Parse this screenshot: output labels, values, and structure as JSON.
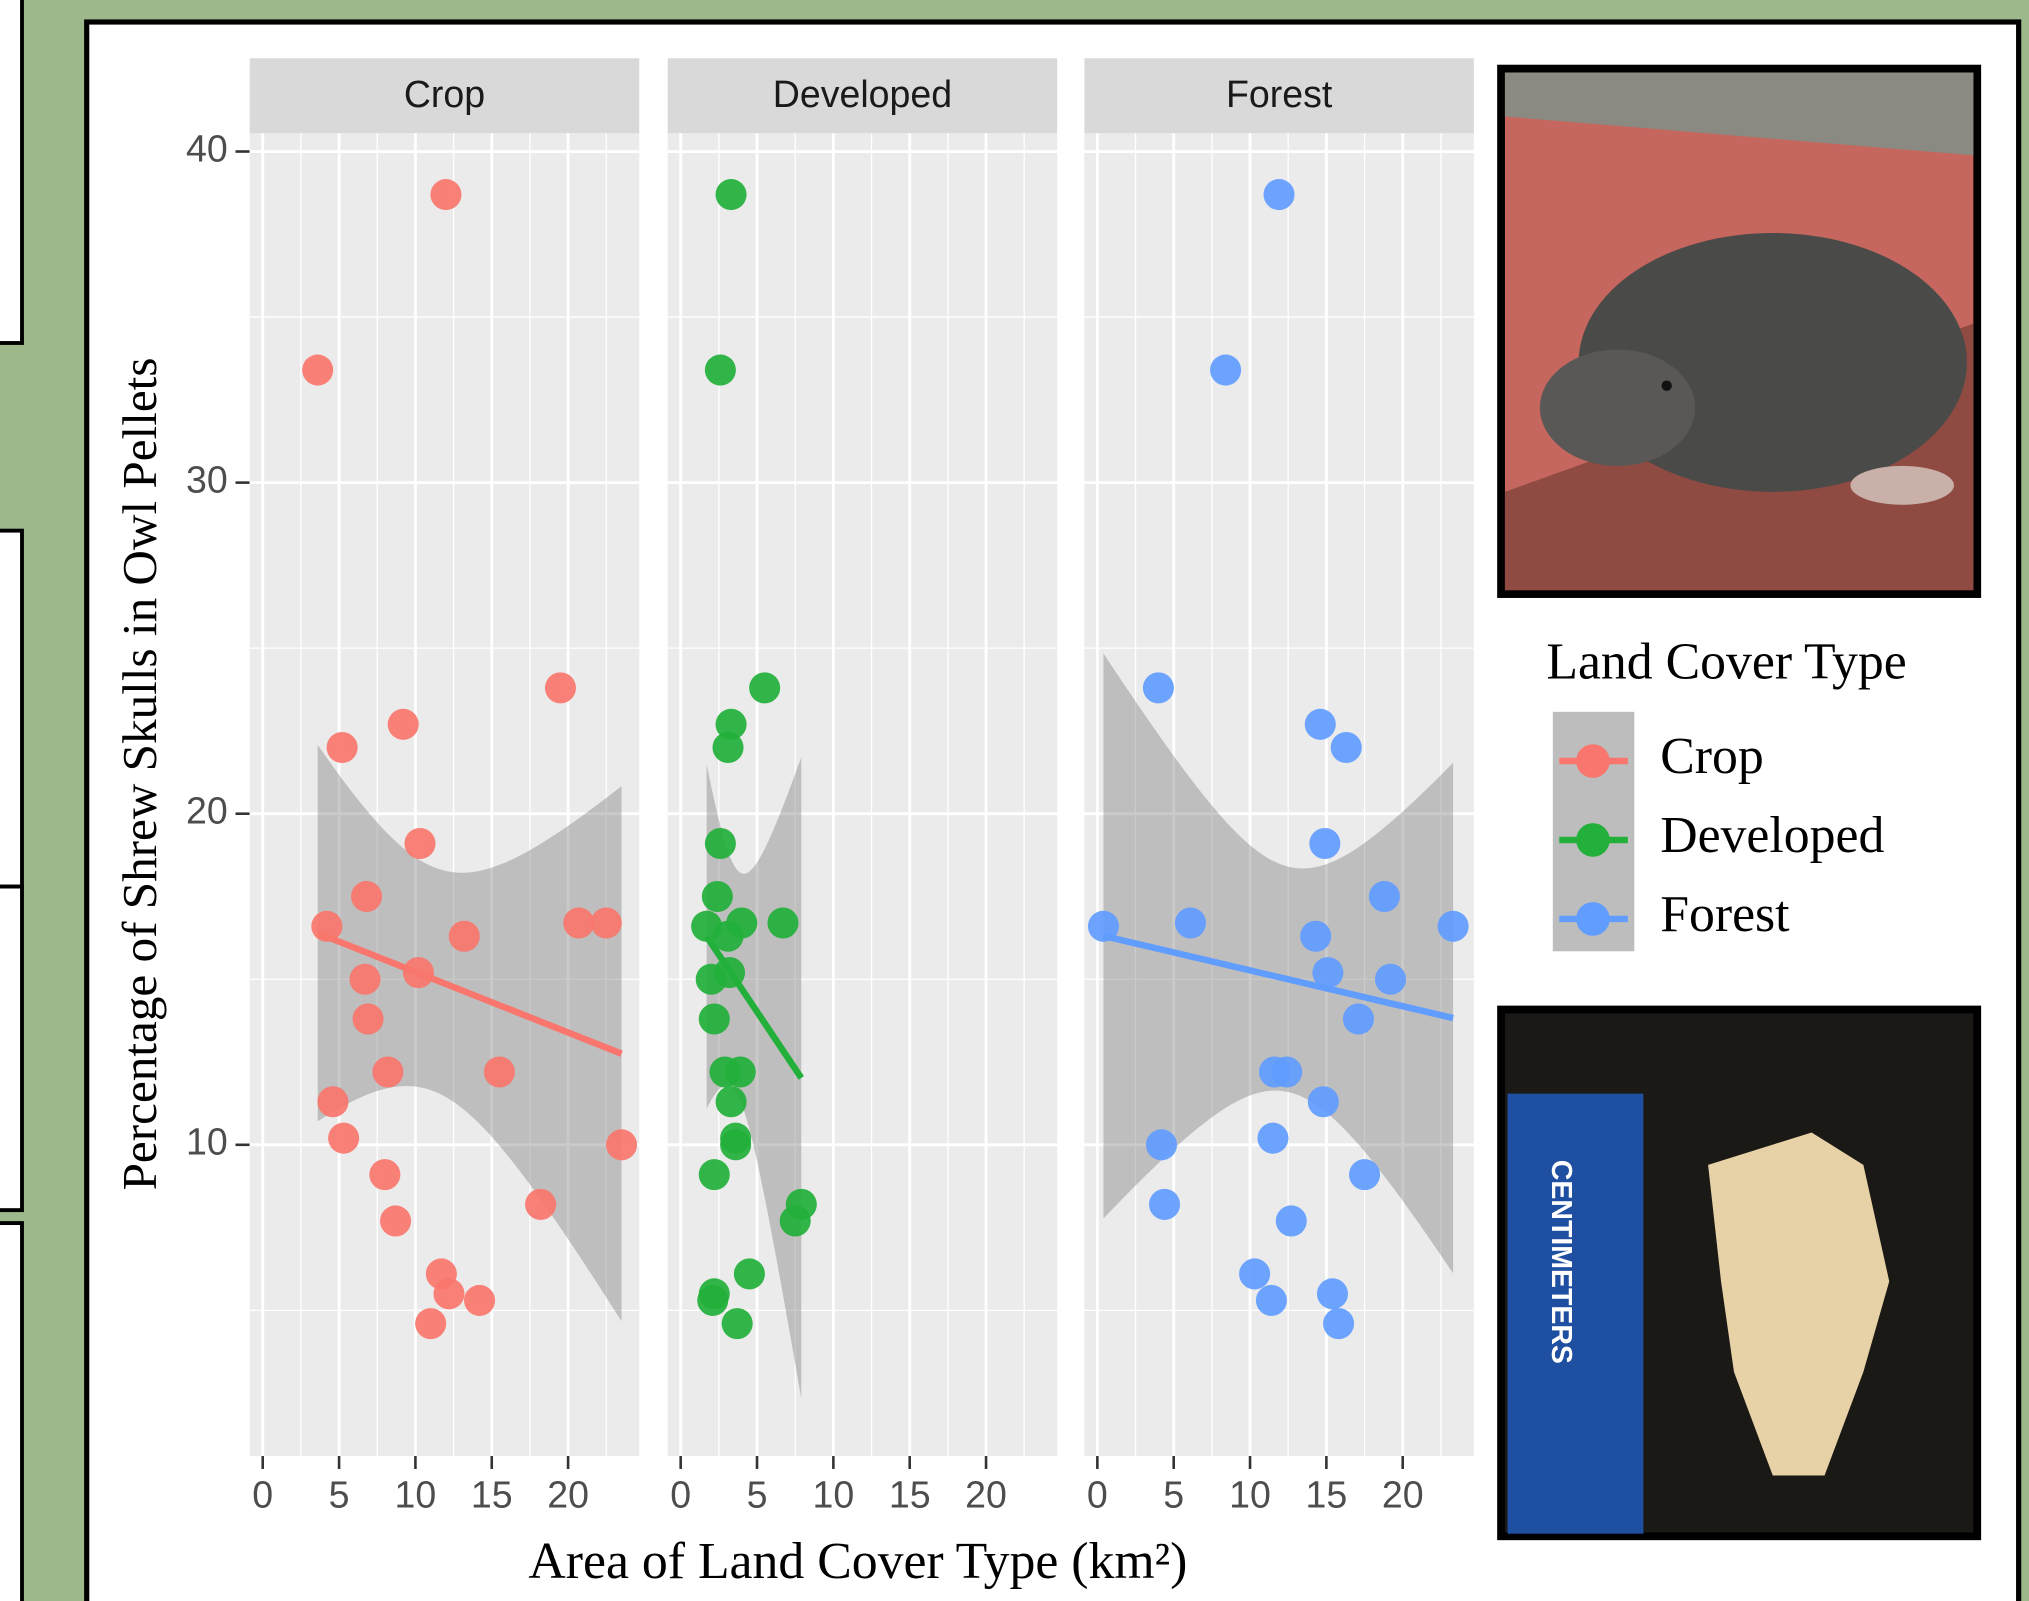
{
  "chart_data": {
    "type": "scatter",
    "facet": true,
    "xlabel": "Area of Land Cover Type (km²)",
    "ylabel": "Percentage of Shrew Skulls in Owl Pellets",
    "legend_title": "Land Cover Type",
    "xlim": [
      -0.85,
      24.66
    ],
    "xticks": [
      0,
      5,
      10,
      15,
      20
    ],
    "ylim": [
      0.6,
      40.55
    ],
    "yticks": [
      10,
      20,
      30,
      40
    ],
    "grid": true,
    "trend": "linear",
    "series": [
      {
        "name": "Crop",
        "color": "#f8766d",
        "x": [
          12.0,
          3.6,
          19.5,
          5.2,
          9.2,
          10.3,
          6.8,
          4.2,
          20.7,
          22.5,
          13.2,
          6.7,
          10.2,
          6.9,
          15.5,
          8.2,
          4.6,
          23.5,
          5.3,
          8.0,
          18.2,
          8.7,
          11.7,
          12.2,
          14.2,
          11.0
        ],
        "values": [
          38.7,
          33.4,
          23.8,
          22.0,
          22.7,
          19.1,
          17.5,
          16.6,
          16.7,
          16.7,
          16.3,
          15.0,
          15.2,
          13.8,
          12.2,
          12.2,
          11.3,
          10.0,
          10.2,
          9.1,
          8.2,
          7.7,
          6.1,
          5.5,
          5.3,
          4.6
        ]
      },
      {
        "name": "Developed",
        "color": "#22b03a",
        "x": [
          3.3,
          2.6,
          5.5,
          3.3,
          3.1,
          2.6,
          2.4,
          1.7,
          4.0,
          6.7,
          3.1,
          2.0,
          3.2,
          2.2,
          3.9,
          2.9,
          3.3,
          3.6,
          3.6,
          2.2,
          7.9,
          7.5,
          4.5,
          2.2,
          2.1,
          3.7
        ],
        "values": [
          38.7,
          33.4,
          23.8,
          22.7,
          22.0,
          19.1,
          17.5,
          16.6,
          16.7,
          16.7,
          16.3,
          15.0,
          15.2,
          13.8,
          12.2,
          12.2,
          11.3,
          10.0,
          10.2,
          9.1,
          8.2,
          7.7,
          6.1,
          5.5,
          5.3,
          4.6
        ]
      },
      {
        "name": "Forest",
        "color": "#619cff",
        "x": [
          11.9,
          8.4,
          4.0,
          14.6,
          16.3,
          14.9,
          18.8,
          0.4,
          6.1,
          23.3,
          14.3,
          19.2,
          15.1,
          17.1,
          11.6,
          12.4,
          14.8,
          4.2,
          11.5,
          17.5,
          4.4,
          12.7,
          10.3,
          15.4,
          11.4,
          15.8
        ],
        "values": [
          38.7,
          33.4,
          23.8,
          22.7,
          22.0,
          19.1,
          17.5,
          16.6,
          16.7,
          16.6,
          16.3,
          15.0,
          15.2,
          13.8,
          12.2,
          12.2,
          11.3,
          10.0,
          10.2,
          9.1,
          8.2,
          7.7,
          6.1,
          5.5,
          5.3,
          4.6
        ]
      }
    ]
  },
  "photos": {
    "ruler_label": "CENTIMETERS"
  }
}
